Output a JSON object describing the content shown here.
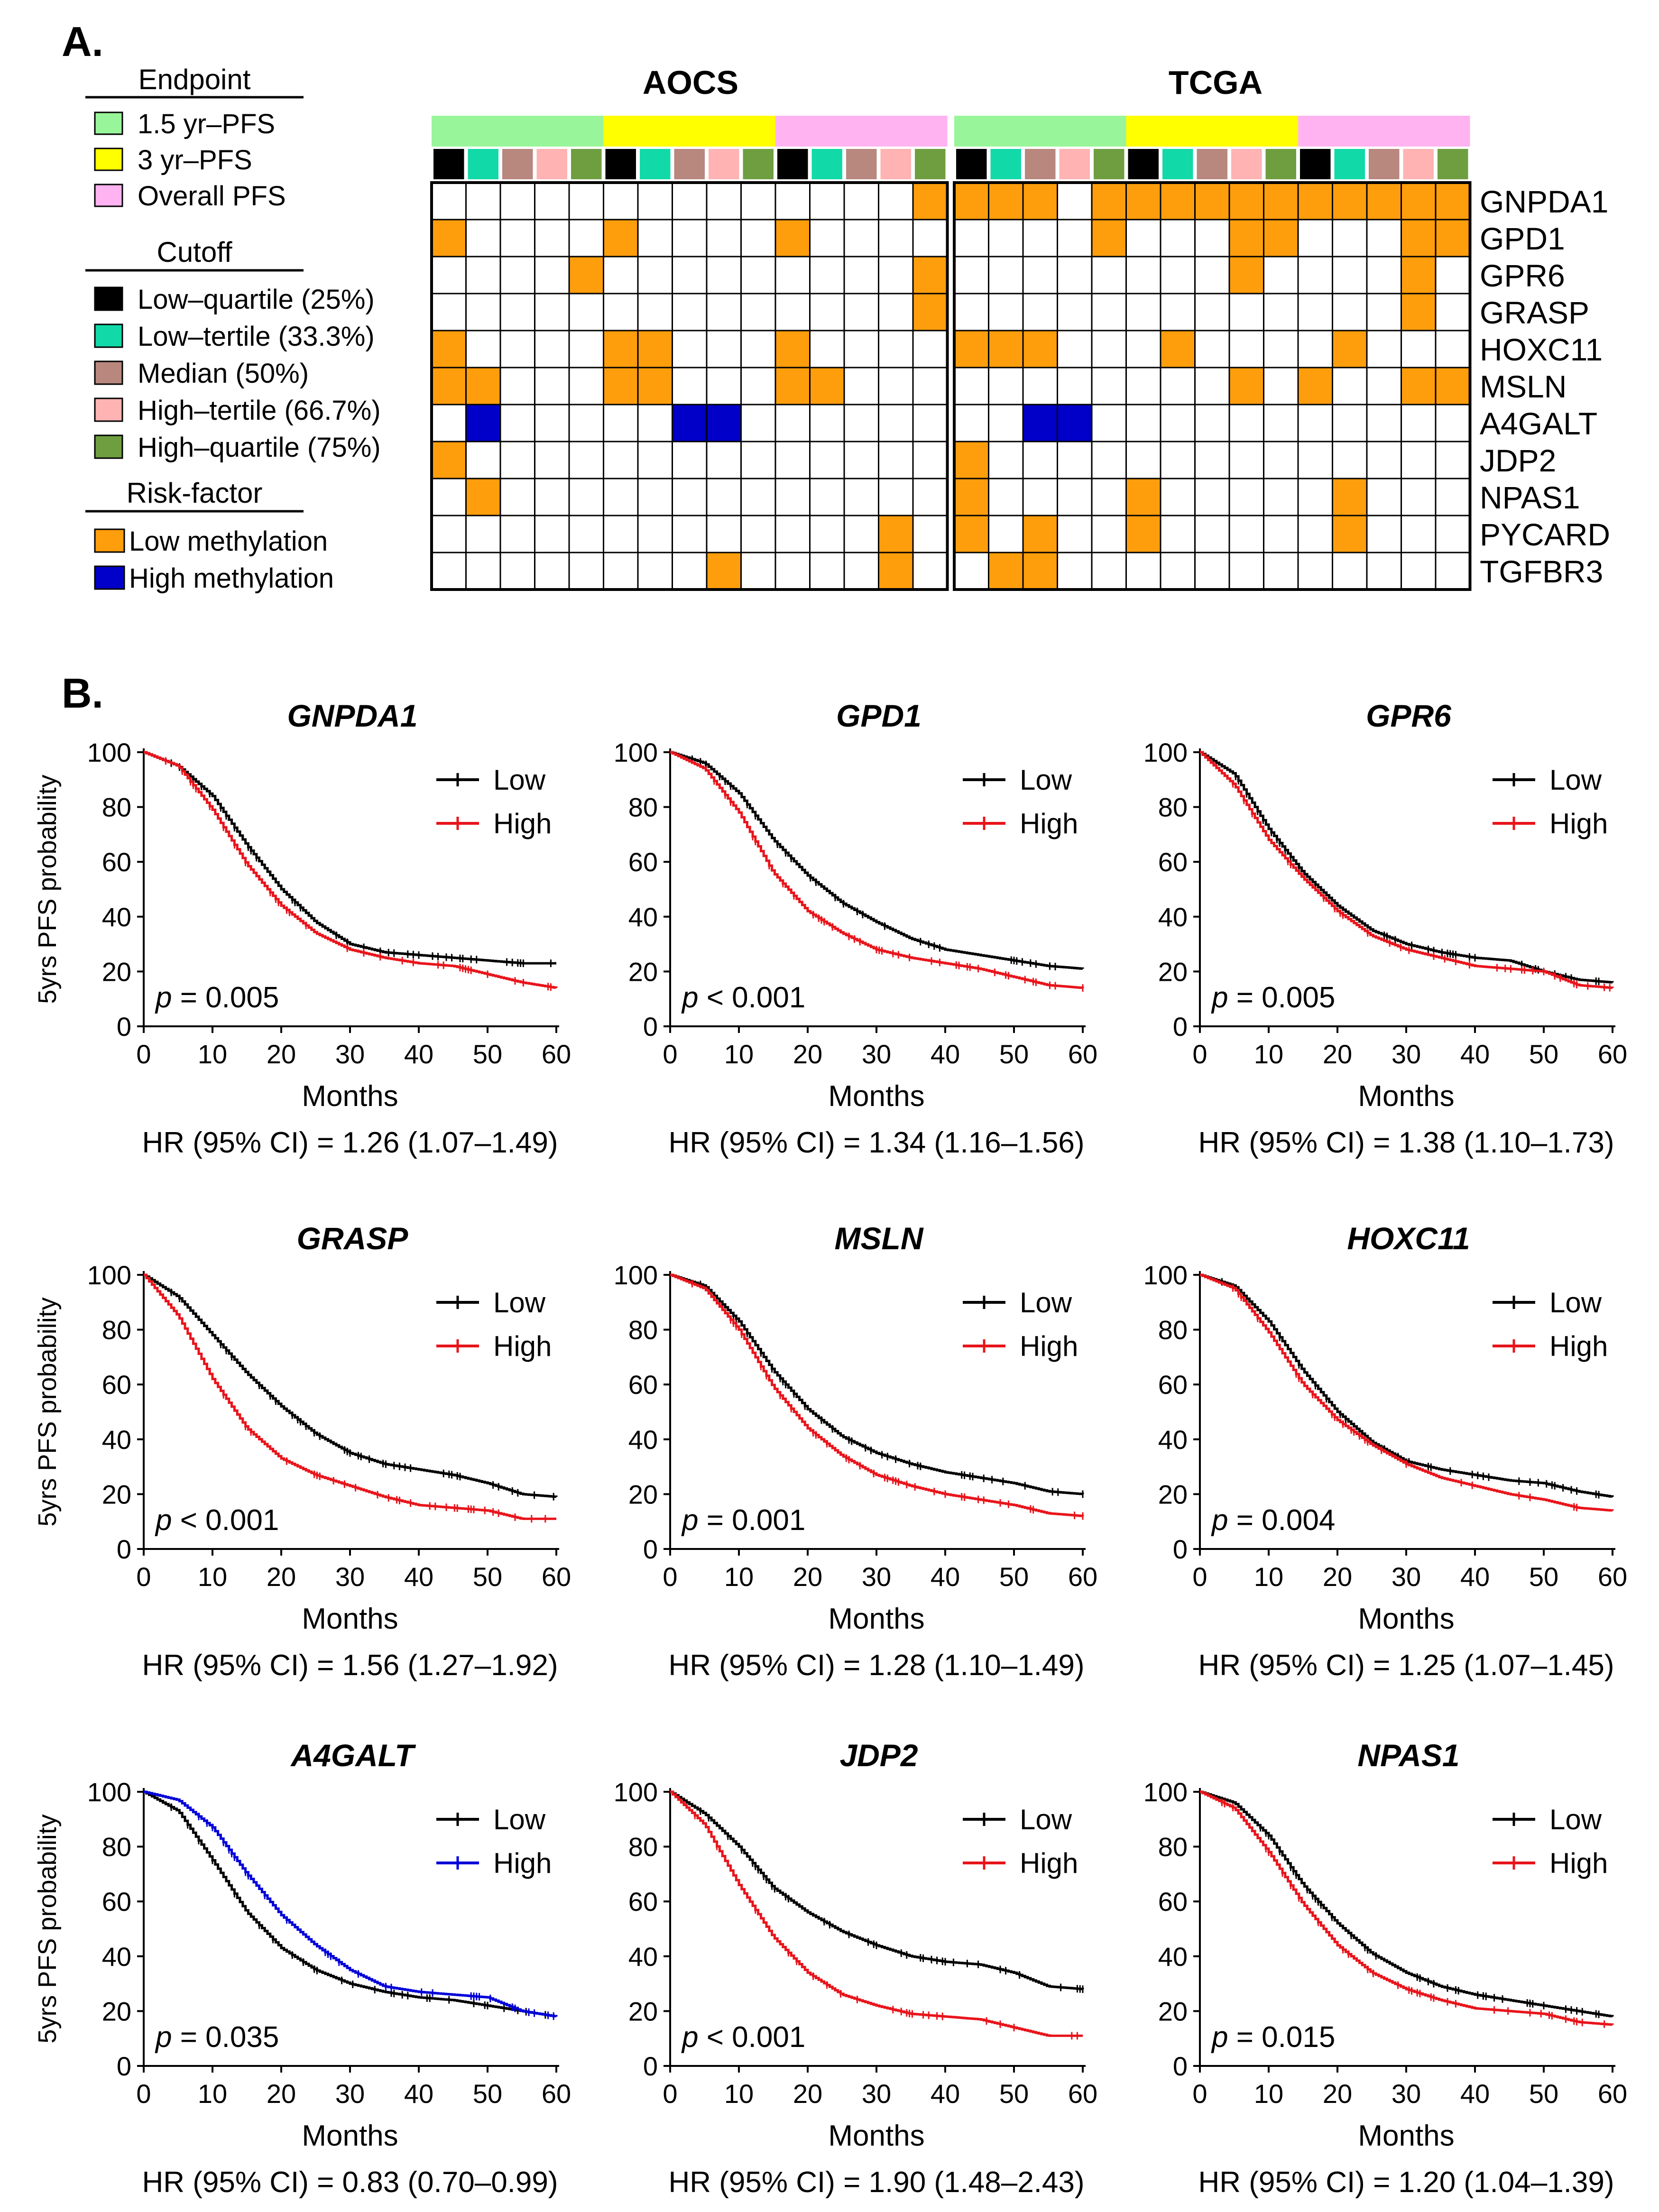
{
  "panel_a": {
    "label": "A.",
    "legend": {
      "endpoint_title": "Endpoint",
      "endpoints": [
        {
          "label": "1.5 yr–PFS",
          "color": "#99f599"
        },
        {
          "label": "3 yr–PFS",
          "color": "#ffff00"
        },
        {
          "label": "Overall PFS",
          "color": "#ffb3f0"
        }
      ],
      "cutoff_title": "Cutoff",
      "cutoffs": [
        {
          "label": "Low–quartile (25%)",
          "color": "#000000"
        },
        {
          "label": "Low–tertile (33.3%)",
          "color": "#12d9a8"
        },
        {
          "label": "Median (50%)",
          "color": "#b8877e"
        },
        {
          "label": "High–tertile (66.7%)",
          "color": "#ffb3b3"
        },
        {
          "label": "High–quartile (75%)",
          "color": "#6e9e40"
        }
      ],
      "risk_title": "Risk-factor",
      "risks": [
        {
          "label": "Low methylation",
          "color": "#ff9e0d"
        },
        {
          "label": "High methylation",
          "color": "#0000c8"
        }
      ]
    },
    "cohorts": [
      "AOCS",
      "TCGA"
    ],
    "genes": [
      "GNPDA1",
      "GPD1",
      "GPR6",
      "GRASP",
      "HOXC11",
      "MSLN",
      "A4GALT",
      "JDP2",
      "NPAS1",
      "PYCARD",
      "TGFBR3"
    ],
    "grid": {
      "AOCS": [
        "00000000000000L",
        "L0000L0000L0000",
        "0000L000000000L",
        "00000000000000L",
        "L0000LL000L0000",
        "LL000LL000LL000",
        "0H00000HH000000",
        "L00000000000000",
        "0L0000000000000",
        "0000000000000L0",
        "00000000L0000L0"
      ],
      "TCGA": [
        "LLL0LLLLLLLLLLL",
        "0000L000LL000LL",
        "00000000L0000L0",
        "0000000000000L0",
        "LLL000L0000L000",
        "00000000L0L00LL",
        "00HH00000000000",
        "L00000000000000",
        "L0000L00000L000",
        "L0L00L00000L000",
        "0LL000000000000"
      ]
    }
  },
  "panel_b": {
    "label": "B.",
    "ylabel": "5yrs PFS probability",
    "xlabel": "Months",
    "yticks": [
      "0",
      "20",
      "40",
      "60",
      "80",
      "100"
    ],
    "xticks": [
      "0",
      "10",
      "20",
      "30",
      "40",
      "50",
      "60"
    ]
  },
  "chart_data": [
    {
      "type": "line",
      "title": "GNPDA1",
      "xlabel": "Months",
      "ylabel": "5yrs PFS probability",
      "xlim": [
        0,
        60
      ],
      "ylim": [
        0,
        100
      ],
      "x": [
        0,
        5,
        10,
        15,
        20,
        25,
        30,
        35,
        40,
        45,
        50,
        55,
        60
      ],
      "series": [
        {
          "name": "Low",
          "color": "#000000",
          "values": [
            100,
            95,
            84,
            66,
            50,
            38,
            30,
            27,
            26,
            25,
            24,
            23,
            23
          ]
        },
        {
          "name": "High",
          "color": "#e8141b",
          "values": [
            100,
            95,
            79,
            59,
            44,
            34,
            28,
            25,
            23,
            22,
            19,
            16,
            14
          ]
        }
      ],
      "p_label": "p",
      "p_text": " = 0.005",
      "hr": "HR (95% CI) = 1.26 (1.07–1.49)"
    },
    {
      "type": "line",
      "title": "GPD1",
      "xlabel": "Months",
      "ylabel": "5yrs PFS probability",
      "xlim": [
        0,
        60
      ],
      "ylim": [
        0,
        100
      ],
      "x": [
        0,
        5,
        10,
        15,
        20,
        25,
        30,
        35,
        40,
        45,
        50,
        55,
        60
      ],
      "series": [
        {
          "name": "Low",
          "color": "#000000",
          "values": [
            100,
            96,
            85,
            68,
            55,
            45,
            38,
            32,
            28,
            26,
            24,
            22,
            21
          ]
        },
        {
          "name": "High",
          "color": "#e8141b",
          "values": [
            100,
            94,
            78,
            56,
            42,
            34,
            28,
            25,
            23,
            21,
            18,
            15,
            14
          ]
        }
      ],
      "p_label": "p",
      "p_text": " < 0.001",
      "hr": "HR (95% CI) = 1.34 (1.16–1.56)"
    },
    {
      "type": "line",
      "title": "GPR6",
      "xlabel": "Months",
      "ylabel": "5yrs PFS probability",
      "xlim": [
        0,
        60
      ],
      "ylim": [
        0,
        100
      ],
      "x": [
        0,
        5,
        10,
        15,
        20,
        25,
        30,
        35,
        40,
        45,
        50,
        55,
        60
      ],
      "series": [
        {
          "name": "Low",
          "color": "#000000",
          "values": [
            100,
            92,
            72,
            56,
            44,
            35,
            30,
            27,
            25,
            24,
            20,
            17,
            16
          ]
        },
        {
          "name": "High",
          "color": "#e8141b",
          "values": [
            100,
            88,
            68,
            54,
            42,
            33,
            28,
            25,
            22,
            21,
            20,
            15,
            14
          ]
        }
      ],
      "p_label": "p",
      "p_text": " = 0.005",
      "hr": "HR (95% CI) = 1.38 (1.10–1.73)"
    },
    {
      "type": "line",
      "title": "GRASP",
      "xlabel": "Months",
      "ylabel": "5yrs PFS probability",
      "xlim": [
        0,
        60
      ],
      "ylim": [
        0,
        100
      ],
      "x": [
        0,
        5,
        10,
        15,
        20,
        25,
        30,
        35,
        40,
        45,
        50,
        55,
        60
      ],
      "series": [
        {
          "name": "Low",
          "color": "#000000",
          "values": [
            100,
            92,
            78,
            64,
            52,
            42,
            35,
            31,
            29,
            27,
            24,
            20,
            19
          ]
        },
        {
          "name": "High",
          "color": "#e8141b",
          "values": [
            100,
            85,
            62,
            44,
            33,
            27,
            23,
            19,
            16,
            15,
            14,
            11,
            11
          ]
        }
      ],
      "p_label": "p",
      "p_text": " < 0.001",
      "hr": "HR (95% CI) = 1.56 (1.27–1.92)"
    },
    {
      "type": "line",
      "title": "MSLN",
      "xlabel": "Months",
      "ylabel": "5yrs PFS probability",
      "xlim": [
        0,
        60
      ],
      "ylim": [
        0,
        100
      ],
      "x": [
        0,
        5,
        10,
        15,
        20,
        25,
        30,
        35,
        40,
        45,
        50,
        55,
        60
      ],
      "series": [
        {
          "name": "Low",
          "color": "#000000",
          "values": [
            100,
            96,
            83,
            65,
            51,
            41,
            35,
            31,
            28,
            26,
            24,
            21,
            20
          ]
        },
        {
          "name": "High",
          "color": "#e8141b",
          "values": [
            100,
            95,
            80,
            59,
            44,
            34,
            27,
            23,
            20,
            18,
            16,
            13,
            12
          ]
        }
      ],
      "p_label": "p",
      "p_text": " = 0.001",
      "hr": "HR (95% CI) = 1.28 (1.10–1.49)"
    },
    {
      "type": "line",
      "title": "HOXC11",
      "xlabel": "Months",
      "ylabel": "5yrs PFS probability",
      "xlim": [
        0,
        60
      ],
      "ylim": [
        0,
        100
      ],
      "x": [
        0,
        5,
        10,
        15,
        20,
        25,
        30,
        35,
        40,
        45,
        50,
        55,
        60
      ],
      "series": [
        {
          "name": "Low",
          "color": "#000000",
          "values": [
            100,
            96,
            83,
            65,
            50,
            39,
            32,
            29,
            27,
            25,
            24,
            21,
            19
          ]
        },
        {
          "name": "High",
          "color": "#e8141b",
          "values": [
            100,
            95,
            79,
            60,
            47,
            38,
            31,
            26,
            23,
            20,
            18,
            15,
            14
          ]
        }
      ],
      "p_label": "p",
      "p_text": " = 0.004",
      "hr": "HR (95% CI) = 1.25 (1.07–1.45)"
    },
    {
      "type": "line",
      "title": "A4GALT",
      "xlabel": "Months",
      "ylabel": "5yrs PFS probability",
      "xlim": [
        0,
        60
      ],
      "ylim": [
        0,
        100
      ],
      "x": [
        0,
        5,
        10,
        15,
        20,
        25,
        30,
        35,
        40,
        45,
        50,
        55,
        60
      ],
      "series": [
        {
          "name": "Low",
          "color": "#000000",
          "values": [
            100,
            93,
            75,
            56,
            43,
            35,
            30,
            27,
            25,
            24,
            22,
            20,
            18
          ]
        },
        {
          "name": "High",
          "color": "#0000d8",
          "values": [
            100,
            97,
            87,
            70,
            55,
            44,
            35,
            29,
            27,
            26,
            25,
            20,
            18
          ]
        }
      ],
      "p_label": "p",
      "p_text": " = 0.035",
      "hr": "HR (95% CI) = 0.83 (0.70–0.99)"
    },
    {
      "type": "line",
      "title": "JDP2",
      "xlabel": "Months",
      "ylabel": "5yrs PFS probability",
      "xlim": [
        0,
        60
      ],
      "ylim": [
        0,
        100
      ],
      "x": [
        0,
        5,
        10,
        15,
        20,
        25,
        30,
        35,
        40,
        45,
        50,
        55,
        60
      ],
      "series": [
        {
          "name": "Low",
          "color": "#000000",
          "values": [
            100,
            92,
            80,
            65,
            56,
            49,
            44,
            40,
            38,
            37,
            34,
            29,
            28
          ]
        },
        {
          "name": "High",
          "color": "#e8141b",
          "values": [
            100,
            88,
            66,
            47,
            34,
            26,
            22,
            19,
            18,
            17,
            14,
            11,
            11
          ]
        }
      ],
      "p_label": "p",
      "p_text": " < 0.001",
      "hr": "HR (95% CI) = 1.90 (1.48–2.43)"
    },
    {
      "type": "line",
      "title": "NPAS1",
      "xlabel": "Months",
      "ylabel": "5yrs PFS probability",
      "xlim": [
        0,
        60
      ],
      "ylim": [
        0,
        100
      ],
      "x": [
        0,
        5,
        10,
        15,
        20,
        25,
        30,
        35,
        40,
        45,
        50,
        55,
        60
      ],
      "series": [
        {
          "name": "Low",
          "color": "#000000",
          "values": [
            100,
            96,
            84,
            66,
            52,
            41,
            34,
            29,
            26,
            24,
            22,
            20,
            18
          ]
        },
        {
          "name": "High",
          "color": "#e8141b",
          "values": [
            100,
            94,
            78,
            59,
            44,
            34,
            28,
            24,
            21,
            20,
            19,
            16,
            15
          ]
        }
      ],
      "p_label": "p",
      "p_text": " = 0.015",
      "hr": "HR (95% CI) = 1.20 (1.04–1.39)"
    }
  ]
}
